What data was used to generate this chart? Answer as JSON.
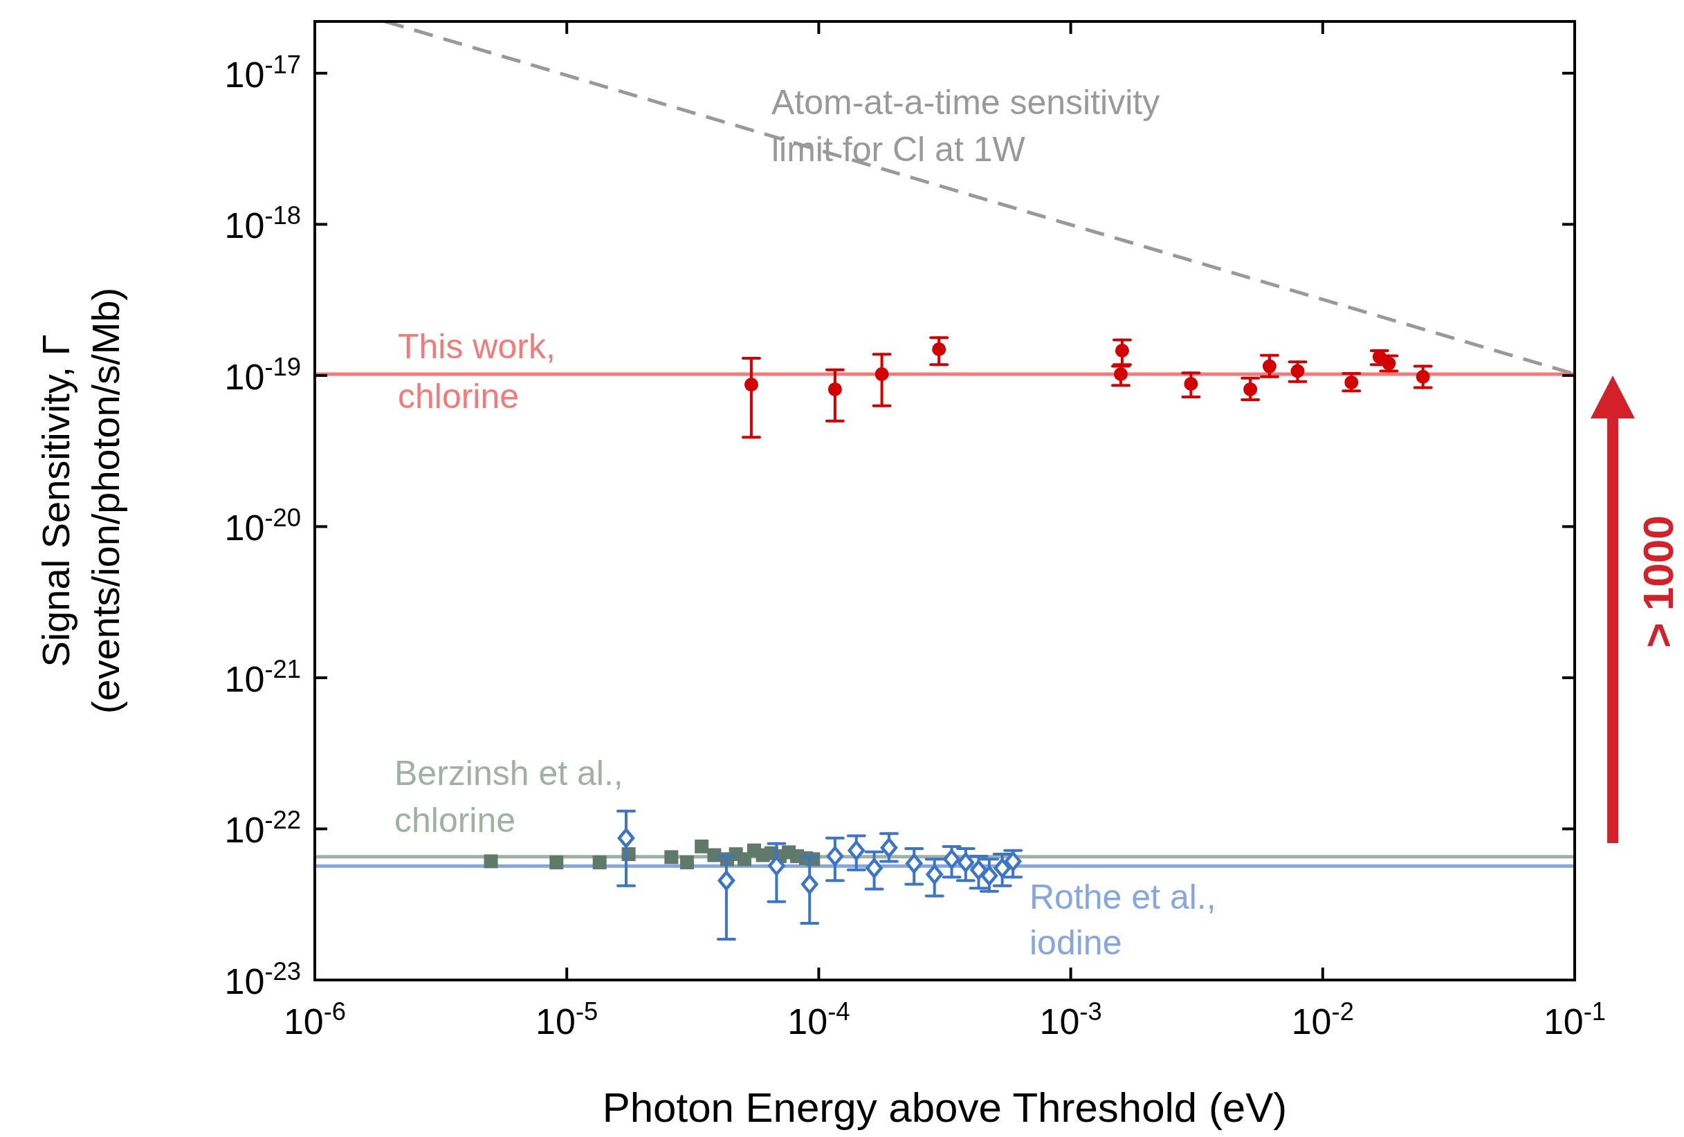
{
  "chart_data": {
    "type": "scatter",
    "xlabel": "Photon Energy above Threshold (eV)",
    "ylabel": "Signal Sensitivity, Γ\n(events/ion/photon/s/Mb)",
    "log": "xy",
    "xlim": [
      1e-06,
      0.1
    ],
    "ylim": [
      1e-23,
      2.2e-17
    ],
    "xticks": [
      {
        "value": 1e-06,
        "label": "10$^{-6}$"
      },
      {
        "value": 1e-05,
        "label": "10$^{-5}$"
      },
      {
        "value": 0.0001,
        "label": "10$^{-4}$"
      },
      {
        "value": 0.001,
        "label": "10$^{-3}$"
      },
      {
        "value": 0.01,
        "label": "10$^{-2}$"
      },
      {
        "value": 0.1,
        "label": "10$^{-1}$"
      }
    ],
    "yticks": [
      {
        "value": 1e-23,
        "label": "10$^{-23}$"
      },
      {
        "value": 1e-22,
        "label": "10$^{-22}$"
      },
      {
        "value": 1e-21,
        "label": "10$^{-21}$"
      },
      {
        "value": 1e-20,
        "label": "10$^{-20}$"
      },
      {
        "value": 1e-19,
        "label": "10$^{-19}$"
      },
      {
        "value": 1e-18,
        "label": "10$^{-18}$"
      },
      {
        "value": 1e-17,
        "label": "10$^{-17}$"
      }
    ],
    "grid": false,
    "series": [
      {
        "type": "line",
        "color": "#999999",
        "line_style": "dashed",
        "x": [
          1.9e-06,
          0.1
        ],
        "values": [
          2.2e-17,
          1.02e-19
        ]
      },
      {
        "type": "line",
        "color": "#f47a7a",
        "line_style": "solid",
        "x": [
          1e-06,
          0.1
        ],
        "values": [
          1.02e-19,
          1.02e-19
        ]
      },
      {
        "type": "line",
        "color": "#9fb0a4",
        "line_style": "solid",
        "x": [
          1e-06,
          0.1
        ],
        "values": [
          6.55e-23,
          6.55e-23
        ]
      },
      {
        "type": "line",
        "color": "#85a6de",
        "line_style": "solid",
        "x": [
          1e-06,
          0.1
        ],
        "values": [
          5.68e-23,
          5.68e-23
        ]
      },
      {
        "marker": "circle",
        "color": "#d40000",
        "x": [
          5.4e-05,
          0.000116,
          0.000178,
          0.0003,
          0.0016,
          0.00158,
          0.003,
          0.00516,
          0.00615,
          0.00795,
          0.013,
          0.0168,
          0.0183,
          0.025
        ],
        "values": [
          8.7e-20,
          8.1e-20,
          1.02e-19,
          1.49e-19,
          1.46e-19,
          1.02e-19,
          8.8e-20,
          8.1e-20,
          1.15e-19,
          1.07e-19,
          9e-20,
          1.33e-19,
          1.2e-19,
          9.8e-20
        ],
        "errors": [
          [
            3.9e-20,
            1.3e-19
          ],
          [
            5e-20,
            1.09e-19
          ],
          [
            6.3e-20,
            1.38e-19
          ],
          [
            1.18e-19,
            1.78e-19
          ],
          [
            1.18e-19,
            1.72e-19
          ],
          [
            8.6e-20,
            1.15e-19
          ],
          [
            7.2e-20,
            1.04e-19
          ],
          [
            6.9e-20,
            9.6e-20
          ],
          [
            9.8e-20,
            1.36e-19
          ],
          [
            9.1e-20,
            1.23e-19
          ],
          [
            7.9e-20,
            1.03e-19
          ],
          [
            1.18e-19,
            1.46e-19
          ],
          [
            1.07e-19,
            1.35e-19
          ],
          [
            8.3e-20,
            1.15e-19
          ]
        ]
      },
      {
        "marker": "square",
        "color": "#5f7a6a",
        "x": [
          5e-06,
          9.1e-06,
          1.35e-05,
          1.76e-05,
          2.6e-05,
          3e-05,
          3.43e-05,
          3.85e-05,
          4.33e-05,
          4.69e-05,
          5.07e-05,
          5.54e-05,
          6e-05,
          6.48e-05,
          7e-05,
          7.6e-05,
          8.2e-05,
          8.9e-05,
          9.5e-05
        ],
        "values": [
          6.1e-23,
          6e-23,
          6e-23,
          6.8e-23,
          6.5e-23,
          6e-23,
          7.65e-23,
          6.7e-23,
          6.3e-23,
          6.8e-23,
          6.3e-23,
          7.2e-23,
          6.7e-23,
          6.9e-23,
          6.6e-23,
          7e-23,
          6.6e-23,
          6.4e-23,
          6.3e-23
        ]
      },
      {
        "marker": "diamond",
        "color": "#3a75c8",
        "x": [
          1.72e-05,
          4.3e-05,
          6.8e-05,
          9.2e-05,
          0.000116,
          0.000141,
          0.000166,
          0.00019,
          0.000239,
          0.000288,
          0.000337,
          0.000383,
          0.000431,
          0.000475,
          0.000535,
          0.00059
        ],
        "values": [
          8.7e-23,
          4.55e-23,
          5.7e-23,
          4.3e-23,
          6.6e-23,
          7.2e-23,
          5.5e-23,
          7.5e-23,
          5.9e-23,
          5e-23,
          6.3e-23,
          6e-23,
          5.35e-23,
          4.9e-23,
          5.5e-23,
          6.1e-23
        ],
        "errors": [
          [
            4.2e-23,
            1.31e-22
          ],
          [
            1.86e-23,
            6.6e-23
          ],
          [
            3.3e-23,
            8e-23
          ],
          [
            2.37e-23,
            6.5e-23
          ],
          [
            4.55e-23,
            8.7e-23
          ],
          [
            5.35e-23,
            9e-23
          ],
          [
            4e-23,
            7.05e-23
          ],
          [
            6.1e-23,
            9.3e-23
          ],
          [
            4.3e-23,
            7.4e-23
          ],
          [
            3.6e-23,
            6.3e-23
          ],
          [
            4.8e-23,
            7.65e-23
          ],
          [
            4.55e-23,
            7.4e-23
          ],
          [
            4.05e-23,
            6.6e-23
          ],
          [
            3.86e-23,
            6.3e-23
          ],
          [
            4.2e-23,
            6.8e-23
          ],
          [
            4.8e-23,
            7.2e-23
          ]
        ]
      }
    ],
    "annotations": [
      "Atom-at-a-time sensitivity\nlimit for Cl at 1W",
      "This work,\nchlorine",
      "Berzinsh et al.,\nchlorine",
      "Rothe et al.,\niodine",
      "> 1000"
    ]
  }
}
